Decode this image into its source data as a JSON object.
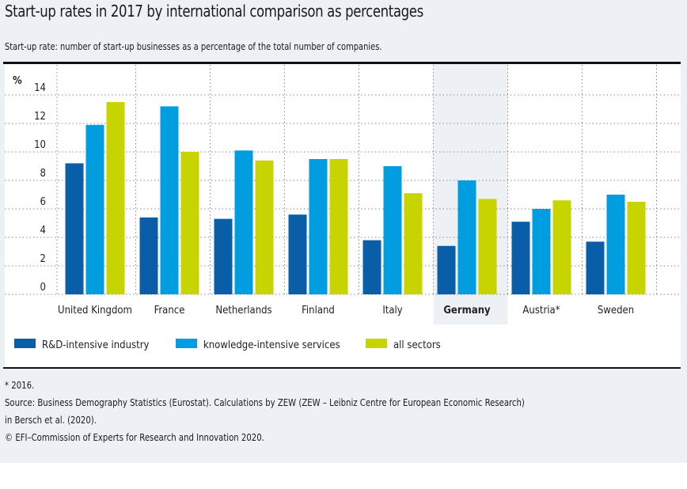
{
  "title": "Start-up rates in 2017 by international comparison as percentages",
  "subtitle": "Start-up rate: number of start-up businesses as a percentage of the total number of companies.",
  "colors": {
    "background": "#edf1f5",
    "rd_intensive": "#0a5ea8",
    "knowledge_services": "#009ee0",
    "all_sectors": "#c8d400",
    "highlight": "#edf1f5"
  },
  "chart_data": {
    "type": "bar",
    "title": "Start-up rates in 2017 by international comparison as percentages",
    "xlabel": "",
    "ylabel": "%",
    "ylim": [
      0,
      14
    ],
    "yticks": [
      0,
      2,
      4,
      6,
      8,
      10,
      12,
      14
    ],
    "grid": true,
    "legend_position": "bottom-left",
    "highlighted_category": "Germany",
    "categories": [
      "United Kingdom",
      "France",
      "Netherlands",
      "Finland",
      "Italy",
      "Germany",
      "Austria*",
      "Sweden"
    ],
    "series": [
      {
        "name": "R&D-intensive industry",
        "color": "#0a5ea8",
        "values": [
          9.2,
          5.4,
          5.3,
          5.6,
          3.8,
          3.4,
          5.1,
          3.7
        ]
      },
      {
        "name": "knowledge-intensive services",
        "color": "#009ee0",
        "values": [
          11.9,
          13.2,
          10.1,
          9.5,
          9.0,
          8.0,
          6.0,
          7.0
        ]
      },
      {
        "name": "all sectors",
        "color": "#c8d400",
        "values": [
          13.5,
          10.0,
          9.4,
          9.5,
          7.1,
          6.7,
          6.6,
          6.5
        ]
      }
    ]
  },
  "notes": {
    "footnote": "* 2016.",
    "source_line1": "Source: Business Demography Statistics (Eurostat). Calculations by ZEW (ZEW – Leibniz Centre for European Economic Research)",
    "source_line2": "in Bersch et al. (2020).",
    "copyright": "© EFI–Commission of Experts for Research and Innovation 2020."
  }
}
